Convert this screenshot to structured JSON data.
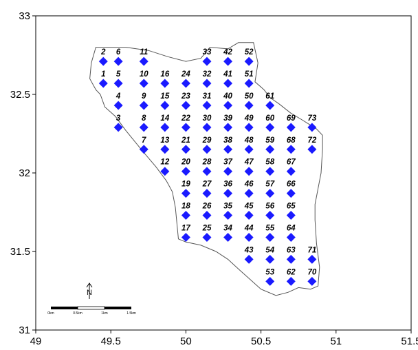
{
  "chart_data": {
    "type": "scatter",
    "xlim": [
      49,
      51.5
    ],
    "ylim": [
      31,
      33
    ],
    "x_ticks": [
      "49",
      "49.5",
      "50",
      "50.5",
      "51",
      "51.5"
    ],
    "y_ticks": [
      "31",
      "31.5",
      "32",
      "32.5",
      "33"
    ],
    "marker_color": "#1a1aff",
    "boundary_color": "#555555",
    "boundary": [
      [
        49.4,
        32.8
      ],
      [
        49.6,
        32.8
      ],
      [
        49.75,
        32.78
      ],
      [
        49.88,
        32.74
      ],
      [
        50.0,
        32.71
      ],
      [
        50.1,
        32.73
      ],
      [
        50.16,
        32.8
      ],
      [
        50.28,
        32.79
      ],
      [
        50.35,
        32.83
      ],
      [
        50.45,
        32.83
      ],
      [
        50.48,
        32.7
      ],
      [
        50.46,
        32.58
      ],
      [
        50.52,
        32.53
      ],
      [
        50.56,
        32.48
      ],
      [
        50.62,
        32.44
      ],
      [
        50.7,
        32.38
      ],
      [
        50.77,
        32.34
      ],
      [
        50.82,
        32.31
      ],
      [
        50.87,
        32.28
      ],
      [
        50.91,
        32.24
      ],
      [
        50.91,
        32.15
      ],
      [
        50.9,
        32.0
      ],
      [
        50.88,
        31.9
      ],
      [
        50.86,
        31.8
      ],
      [
        50.86,
        31.7
      ],
      [
        50.87,
        31.55
      ],
      [
        50.89,
        31.4
      ],
      [
        50.88,
        31.28
      ],
      [
        50.83,
        31.26
      ],
      [
        50.75,
        31.27
      ],
      [
        50.68,
        31.24
      ],
      [
        50.6,
        31.22
      ],
      [
        50.5,
        31.26
      ],
      [
        50.43,
        31.32
      ],
      [
        50.36,
        31.38
      ],
      [
        50.28,
        31.45
      ],
      [
        50.2,
        31.5
      ],
      [
        50.1,
        31.54
      ],
      [
        50.0,
        31.56
      ],
      [
        49.95,
        31.58
      ],
      [
        49.94,
        31.68
      ],
      [
        49.93,
        31.78
      ],
      [
        49.91,
        31.88
      ],
      [
        49.87,
        31.95
      ],
      [
        49.8,
        32.04
      ],
      [
        49.72,
        32.13
      ],
      [
        49.66,
        32.2
      ],
      [
        49.6,
        32.27
      ],
      [
        49.53,
        32.36
      ],
      [
        49.46,
        32.42
      ],
      [
        49.43,
        32.5
      ],
      [
        49.4,
        32.53
      ],
      [
        49.36,
        32.6
      ],
      [
        49.37,
        32.7
      ],
      [
        49.4,
        32.8
      ]
    ],
    "points": [
      {
        "id": "1",
        "x": 49.45,
        "y": 32.57
      },
      {
        "id": "2",
        "x": 49.45,
        "y": 32.71
      },
      {
        "id": "3",
        "x": 49.55,
        "y": 32.29
      },
      {
        "id": "4",
        "x": 49.55,
        "y": 32.43
      },
      {
        "id": "5",
        "x": 49.55,
        "y": 32.57
      },
      {
        "id": "6",
        "x": 49.55,
        "y": 32.71
      },
      {
        "id": "7",
        "x": 49.72,
        "y": 32.15
      },
      {
        "id": "8",
        "x": 49.72,
        "y": 32.29
      },
      {
        "id": "9",
        "x": 49.72,
        "y": 32.43
      },
      {
        "id": "10",
        "x": 49.72,
        "y": 32.57
      },
      {
        "id": "11",
        "x": 49.72,
        "y": 32.71
      },
      {
        "id": "12",
        "x": 49.86,
        "y": 32.01
      },
      {
        "id": "13",
        "x": 49.86,
        "y": 32.15
      },
      {
        "id": "14",
        "x": 49.86,
        "y": 32.29
      },
      {
        "id": "15",
        "x": 49.86,
        "y": 32.43
      },
      {
        "id": "16",
        "x": 49.86,
        "y": 32.57
      },
      {
        "id": "17",
        "x": 50.0,
        "y": 31.59
      },
      {
        "id": "18",
        "x": 50.0,
        "y": 31.73
      },
      {
        "id": "19",
        "x": 50.0,
        "y": 31.87
      },
      {
        "id": "20",
        "x": 50.0,
        "y": 32.01
      },
      {
        "id": "21",
        "x": 50.0,
        "y": 32.15
      },
      {
        "id": "22",
        "x": 50.0,
        "y": 32.29
      },
      {
        "id": "23",
        "x": 50.0,
        "y": 32.43
      },
      {
        "id": "24",
        "x": 50.0,
        "y": 32.57
      },
      {
        "id": "25",
        "x": 50.14,
        "y": 31.59
      },
      {
        "id": "26",
        "x": 50.14,
        "y": 31.73
      },
      {
        "id": "27",
        "x": 50.14,
        "y": 31.87
      },
      {
        "id": "28",
        "x": 50.14,
        "y": 32.01
      },
      {
        "id": "29",
        "x": 50.14,
        "y": 32.15
      },
      {
        "id": "30",
        "x": 50.14,
        "y": 32.29
      },
      {
        "id": "31",
        "x": 50.14,
        "y": 32.43
      },
      {
        "id": "32",
        "x": 50.14,
        "y": 32.57
      },
      {
        "id": "33",
        "x": 50.14,
        "y": 32.71
      },
      {
        "id": "34",
        "x": 50.28,
        "y": 31.59
      },
      {
        "id": "35",
        "x": 50.28,
        "y": 31.73
      },
      {
        "id": "36",
        "x": 50.28,
        "y": 31.87
      },
      {
        "id": "37",
        "x": 50.28,
        "y": 32.01
      },
      {
        "id": "38",
        "x": 50.28,
        "y": 32.15
      },
      {
        "id": "39",
        "x": 50.28,
        "y": 32.29
      },
      {
        "id": "40",
        "x": 50.28,
        "y": 32.43
      },
      {
        "id": "41",
        "x": 50.28,
        "y": 32.57
      },
      {
        "id": "42",
        "x": 50.28,
        "y": 32.71
      },
      {
        "id": "43",
        "x": 50.42,
        "y": 31.45
      },
      {
        "id": "44",
        "x": 50.42,
        "y": 31.59
      },
      {
        "id": "45",
        "x": 50.42,
        "y": 31.73
      },
      {
        "id": "46",
        "x": 50.42,
        "y": 31.87
      },
      {
        "id": "47",
        "x": 50.42,
        "y": 32.01
      },
      {
        "id": "48",
        "x": 50.42,
        "y": 32.15
      },
      {
        "id": "49",
        "x": 50.42,
        "y": 32.29
      },
      {
        "id": "50",
        "x": 50.42,
        "y": 32.43
      },
      {
        "id": "51",
        "x": 50.42,
        "y": 32.57
      },
      {
        "id": "52",
        "x": 50.42,
        "y": 32.71
      },
      {
        "id": "53",
        "x": 50.56,
        "y": 31.31
      },
      {
        "id": "54",
        "x": 50.56,
        "y": 31.45
      },
      {
        "id": "55",
        "x": 50.56,
        "y": 31.59
      },
      {
        "id": "56",
        "x": 50.56,
        "y": 31.73
      },
      {
        "id": "57",
        "x": 50.56,
        "y": 31.87
      },
      {
        "id": "58",
        "x": 50.56,
        "y": 32.01
      },
      {
        "id": "59",
        "x": 50.56,
        "y": 32.15
      },
      {
        "id": "60",
        "x": 50.56,
        "y": 32.29
      },
      {
        "id": "61",
        "x": 50.56,
        "y": 32.43
      },
      {
        "id": "62",
        "x": 50.7,
        "y": 31.31
      },
      {
        "id": "63",
        "x": 50.7,
        "y": 31.45
      },
      {
        "id": "64",
        "x": 50.7,
        "y": 31.59
      },
      {
        "id": "65",
        "x": 50.7,
        "y": 31.73
      },
      {
        "id": "66",
        "x": 50.7,
        "y": 31.87
      },
      {
        "id": "67",
        "x": 50.7,
        "y": 32.01
      },
      {
        "id": "68",
        "x": 50.7,
        "y": 32.15
      },
      {
        "id": "69",
        "x": 50.7,
        "y": 32.29
      },
      {
        "id": "70",
        "x": 50.84,
        "y": 31.31
      },
      {
        "id": "71",
        "x": 50.84,
        "y": 31.45
      },
      {
        "id": "72",
        "x": 50.84,
        "y": 32.15
      },
      {
        "id": "73",
        "x": 50.84,
        "y": 32.29
      }
    ]
  },
  "north_arrow": {
    "label": "N"
  },
  "scale_bar": {
    "labels": [
      "0km",
      "0.5km",
      "1km",
      "1.5km"
    ]
  }
}
